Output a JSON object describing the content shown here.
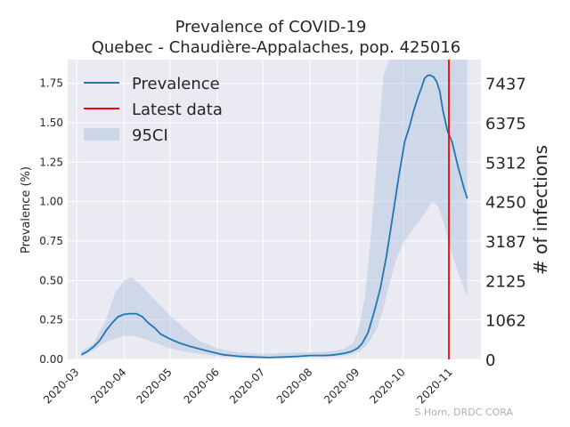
{
  "chart_data": {
    "type": "line",
    "title_line1": "Prevalence of COVID-19",
    "title_line2": "Quebec - Chaudière-Appalaches, pop. 425016",
    "ylabel_left": "Prevalence (%)",
    "ylabel_right": "# of infections",
    "credit": "S Horn, DRDC CORA",
    "xlim": [
      "2020-02-24",
      "2020-11-21"
    ],
    "ylim": [
      0,
      1.9
    ],
    "grid": true,
    "legend_position": "upper-left",
    "x_ticks": [
      "2020-03",
      "2020-04",
      "2020-05",
      "2020-06",
      "2020-07",
      "2020-08",
      "2020-09",
      "2020-10",
      "2020-11"
    ],
    "x_tick_dates": [
      "2020-03-01",
      "2020-04-01",
      "2020-05-01",
      "2020-06-01",
      "2020-07-01",
      "2020-08-01",
      "2020-09-01",
      "2020-10-01",
      "2020-11-01"
    ],
    "y_ticks_left": [
      "0.00",
      "0.25",
      "0.50",
      "0.75",
      "1.00",
      "1.25",
      "1.50",
      "1.75"
    ],
    "y_tick_values_left": [
      0,
      0.25,
      0.5,
      0.75,
      1.0,
      1.25,
      1.5,
      1.75
    ],
    "y_ticks_right": [
      "0",
      "1062",
      "2125",
      "3187",
      "4250",
      "5312",
      "6375",
      "7437"
    ],
    "series": [
      {
        "name": "Prevalence",
        "color": "#1f77b4",
        "x": [
          "2020-03-04",
          "2020-03-08",
          "2020-03-12",
          "2020-03-16",
          "2020-03-20",
          "2020-03-24",
          "2020-03-28",
          "2020-04-01",
          "2020-04-05",
          "2020-04-09",
          "2020-04-13",
          "2020-04-17",
          "2020-04-21",
          "2020-04-25",
          "2020-05-01",
          "2020-05-07",
          "2020-05-15",
          "2020-05-25",
          "2020-06-05",
          "2020-06-15",
          "2020-06-25",
          "2020-07-05",
          "2020-07-15",
          "2020-07-25",
          "2020-08-01",
          "2020-08-10",
          "2020-08-15",
          "2020-08-20",
          "2020-08-24",
          "2020-08-28",
          "2020-09-01",
          "2020-09-04",
          "2020-09-08",
          "2020-09-12",
          "2020-09-16",
          "2020-09-20",
          "2020-09-24",
          "2020-09-28",
          "2020-10-02",
          "2020-10-05",
          "2020-10-08",
          "2020-10-11",
          "2020-10-13",
          "2020-10-15",
          "2020-10-17",
          "2020-10-19",
          "2020-10-21",
          "2020-10-23",
          "2020-10-25",
          "2020-10-27",
          "2020-10-30",
          "2020-11-02",
          "2020-11-06",
          "2020-11-10",
          "2020-11-12"
        ],
        "y": [
          0.03,
          0.05,
          0.08,
          0.12,
          0.18,
          0.23,
          0.27,
          0.285,
          0.29,
          0.29,
          0.27,
          0.23,
          0.2,
          0.16,
          0.13,
          0.105,
          0.08,
          0.055,
          0.03,
          0.02,
          0.015,
          0.012,
          0.015,
          0.02,
          0.025,
          0.025,
          0.027,
          0.033,
          0.04,
          0.05,
          0.07,
          0.1,
          0.17,
          0.3,
          0.45,
          0.65,
          0.9,
          1.15,
          1.38,
          1.47,
          1.58,
          1.67,
          1.72,
          1.78,
          1.8,
          1.8,
          1.79,
          1.76,
          1.7,
          1.58,
          1.45,
          1.38,
          1.22,
          1.08,
          1.02
        ]
      },
      {
        "name": "Latest data",
        "color": "#ff0000",
        "x": [
          "2020-10-31",
          "2020-10-31"
        ],
        "y": [
          0,
          1.9
        ]
      }
    ],
    "band": {
      "name": "95CI",
      "color": "#b0c4de",
      "x": [
        "2020-03-04",
        "2020-03-12",
        "2020-03-20",
        "2020-03-26",
        "2020-04-01",
        "2020-04-06",
        "2020-04-11",
        "2020-04-17",
        "2020-04-23",
        "2020-05-01",
        "2020-05-10",
        "2020-05-20",
        "2020-06-01",
        "2020-06-15",
        "2020-07-01",
        "2020-07-15",
        "2020-08-01",
        "2020-08-10",
        "2020-08-18",
        "2020-08-24",
        "2020-08-29",
        "2020-09-02",
        "2020-09-06",
        "2020-09-10",
        "2020-09-14",
        "2020-09-18",
        "2020-09-22",
        "2020-09-26",
        "2020-09-30",
        "2020-10-04",
        "2020-10-08",
        "2020-10-12",
        "2020-10-16",
        "2020-10-20",
        "2020-10-24",
        "2020-10-28",
        "2020-11-01",
        "2020-11-06",
        "2020-11-12"
      ],
      "lower": [
        0.02,
        0.06,
        0.11,
        0.13,
        0.15,
        0.15,
        0.14,
        0.12,
        0.1,
        0.07,
        0.05,
        0.035,
        0.02,
        0.012,
        0.008,
        0.01,
        0.015,
        0.015,
        0.018,
        0.025,
        0.035,
        0.05,
        0.08,
        0.13,
        0.2,
        0.32,
        0.48,
        0.62,
        0.72,
        0.78,
        0.83,
        0.88,
        0.94,
        1.0,
        0.97,
        0.85,
        0.7,
        0.55,
        0.4
      ],
      "upper": [
        0.05,
        0.1,
        0.25,
        0.42,
        0.5,
        0.52,
        0.48,
        0.42,
        0.36,
        0.28,
        0.2,
        0.12,
        0.07,
        0.045,
        0.035,
        0.04,
        0.045,
        0.048,
        0.055,
        0.07,
        0.1,
        0.2,
        0.4,
        0.8,
        1.3,
        1.8,
        1.95,
        1.95,
        1.95,
        1.95,
        1.95,
        1.95,
        1.95,
        1.95,
        1.95,
        1.95,
        1.95,
        1.95,
        1.95
      ]
    }
  }
}
